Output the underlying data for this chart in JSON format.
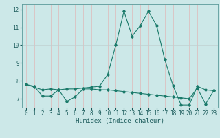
{
  "title": "",
  "xlabel": "Humidex (Indice chaleur)",
  "ylabel": "",
  "line1_x": [
    0,
    1,
    2,
    3,
    4,
    5,
    6,
    7,
    8,
    9,
    10,
    11,
    12,
    13,
    14,
    15,
    16,
    17,
    18,
    19,
    20,
    21,
    22,
    23
  ],
  "line1_y": [
    7.8,
    7.65,
    7.5,
    7.55,
    7.5,
    7.55,
    7.55,
    7.6,
    7.65,
    7.7,
    8.35,
    10.0,
    11.9,
    10.5,
    11.1,
    11.9,
    11.1,
    9.2,
    7.75,
    6.65,
    6.65,
    7.7,
    7.5,
    7.45
  ],
  "line2_x": [
    0,
    1,
    2,
    3,
    4,
    5,
    6,
    7,
    8,
    9,
    10,
    11,
    12,
    13,
    14,
    15,
    16,
    17,
    18,
    19,
    20,
    21,
    22,
    23
  ],
  "line2_y": [
    7.8,
    7.7,
    7.15,
    7.15,
    7.5,
    6.85,
    7.1,
    7.55,
    7.55,
    7.5,
    7.5,
    7.45,
    7.4,
    7.35,
    7.3,
    7.25,
    7.2,
    7.15,
    7.1,
    7.05,
    7.0,
    7.6,
    6.7,
    7.45
  ],
  "line_color": "#1a7a6a",
  "bg_color": "#cce8e8",
  "grid_color_h": "#c0d0d0",
  "grid_color_v": "#e0b8b8",
  "marker": "D",
  "marker_size": 1.8,
  "ylim": [
    6.5,
    12.3
  ],
  "xlim": [
    -0.5,
    23.5
  ],
  "yticks": [
    7,
    8,
    9,
    10,
    11,
    12
  ],
  "xticks": [
    0,
    1,
    2,
    3,
    4,
    5,
    6,
    7,
    8,
    9,
    10,
    11,
    12,
    13,
    14,
    15,
    16,
    17,
    18,
    19,
    20,
    21,
    22,
    23
  ],
  "tick_fontsize": 5.5,
  "xlabel_fontsize": 6.5,
  "linewidth": 0.8
}
